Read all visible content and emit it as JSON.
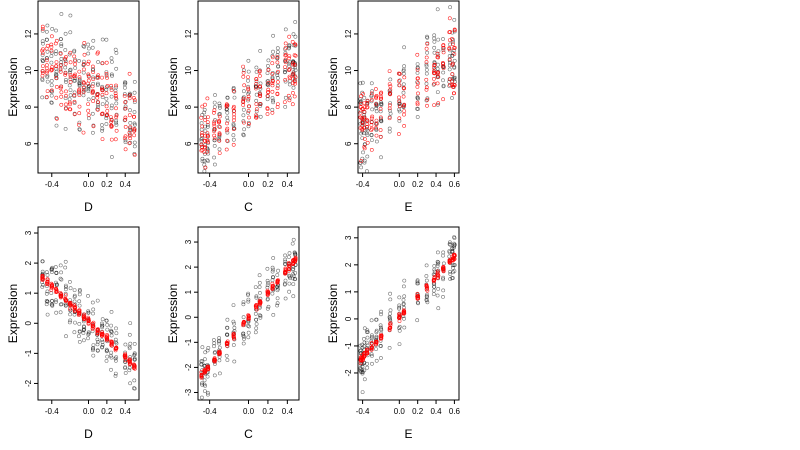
{
  "colors": {
    "black_points": "#000000",
    "red_points": "#ff0000",
    "background": "#ffffff",
    "frame": "#000000"
  },
  "chart_data": [
    {
      "type": "scatter",
      "panel": "top-left",
      "xlabel": "D",
      "ylabel": "Expression",
      "xlim": [
        -0.55,
        0.55
      ],
      "ylim": [
        4.4,
        13.8
      ],
      "xticks": [
        -0.4,
        0.0,
        0.2,
        0.4
      ],
      "xtick_labels": [
        "-0.4",
        "0.0",
        "0.2",
        "0.4"
      ],
      "yticks": [
        6,
        8,
        10,
        12
      ],
      "ytick_labels": [
        "6",
        "8",
        "10",
        "12"
      ],
      "series": [
        {
          "color": "black",
          "trend": {
            "x": [
              -0.5,
              0.5
            ],
            "y": [
              10.5,
              7.8
            ]
          },
          "spread": 2.4,
          "columns": [
            -0.5,
            -0.45,
            -0.4,
            -0.35,
            -0.3,
            -0.25,
            -0.2,
            -0.15,
            -0.1,
            -0.05,
            0.0,
            0.05,
            0.1,
            0.15,
            0.2,
            0.25,
            0.3,
            0.4,
            0.45,
            0.5
          ]
        },
        {
          "color": "red",
          "trend": {
            "x": [
              -0.5,
              0.5
            ],
            "y": [
              10.4,
              7.6
            ]
          },
          "spread": 2.2,
          "columns": [
            -0.5,
            -0.45,
            -0.4,
            -0.35,
            -0.3,
            -0.25,
            -0.2,
            -0.15,
            -0.1,
            -0.05,
            0.0,
            0.05,
            0.1,
            0.15,
            0.2,
            0.25,
            0.3,
            0.4,
            0.45,
            0.5
          ]
        }
      ]
    },
    {
      "type": "scatter",
      "panel": "top-middle",
      "xlabel": "C",
      "ylabel": "Expression",
      "xlim": [
        -0.52,
        0.52
      ],
      "ylim": [
        4.4,
        13.8
      ],
      "xticks": [
        -0.4,
        0.0,
        0.2,
        0.4
      ],
      "xtick_labels": [
        "-0.4",
        "0.0",
        "0.2",
        "0.4"
      ],
      "yticks": [
        6,
        8,
        10,
        12
      ],
      "ytick_labels": [
        "6",
        "8",
        "10",
        "12"
      ],
      "series": [
        {
          "color": "black",
          "trend": {
            "x": [
              -0.48,
              0.48
            ],
            "y": [
              6.0,
              10.5
            ]
          },
          "spread": 2.0,
          "columns": [
            -0.48,
            -0.45,
            -0.42,
            -0.35,
            -0.3,
            -0.22,
            -0.15,
            -0.05,
            0.0,
            0.08,
            0.12,
            0.2,
            0.25,
            0.3,
            0.38,
            0.42,
            0.46,
            0.48
          ]
        },
        {
          "color": "red",
          "trend": {
            "x": [
              -0.48,
              0.48
            ],
            "y": [
              6.2,
              10.2
            ]
          },
          "spread": 1.8,
          "columns": [
            -0.48,
            -0.45,
            -0.42,
            -0.35,
            -0.3,
            -0.22,
            -0.15,
            -0.05,
            0.0,
            0.08,
            0.12,
            0.2,
            0.25,
            0.3,
            0.38,
            0.42,
            0.46,
            0.48
          ]
        }
      ]
    },
    {
      "type": "scatter",
      "panel": "top-right",
      "xlabel": "E",
      "ylabel": "Expression",
      "xlim": [
        -0.45,
        0.65
      ],
      "ylim": [
        4.4,
        13.8
      ],
      "xticks": [
        -0.4,
        0.0,
        0.2,
        0.4,
        0.6
      ],
      "xtick_labels": [
        "-0.4",
        "0.0",
        "0.2",
        "0.4",
        "0.6"
      ],
      "yticks": [
        6,
        8,
        10,
        12
      ],
      "ytick_labels": [
        "6",
        "8",
        "10",
        "12"
      ],
      "series": [
        {
          "color": "black",
          "trend": {
            "x": [
              -0.42,
              0.6
            ],
            "y": [
              7.0,
              10.8
            ]
          },
          "spread": 2.3,
          "columns": [
            -0.42,
            -0.4,
            -0.38,
            -0.35,
            -0.3,
            -0.25,
            -0.2,
            -0.1,
            0.0,
            0.05,
            0.2,
            0.3,
            0.38,
            0.42,
            0.48,
            0.55,
            0.58,
            0.6
          ]
        },
        {
          "color": "red",
          "trend": {
            "x": [
              -0.42,
              0.6
            ],
            "y": [
              7.2,
              10.5
            ]
          },
          "spread": 2.1,
          "columns": [
            -0.42,
            -0.4,
            -0.38,
            -0.35,
            -0.3,
            -0.25,
            -0.2,
            -0.1,
            0.0,
            0.05,
            0.2,
            0.3,
            0.38,
            0.42,
            0.48,
            0.55,
            0.58,
            0.6
          ]
        }
      ]
    },
    {
      "type": "scatter",
      "panel": "bottom-left",
      "xlabel": "D",
      "ylabel": "Expression",
      "xlim": [
        -0.55,
        0.55
      ],
      "ylim": [
        -2.55,
        3.2
      ],
      "xticks": [
        -0.4,
        0.0,
        0.2,
        0.4
      ],
      "xtick_labels": [
        "-0.4",
        "0.0",
        "0.2",
        "0.4"
      ],
      "yticks": [
        -2,
        -1,
        0,
        1,
        2,
        3
      ],
      "ytick_labels": [
        "-2",
        "-1",
        "0",
        "1",
        "2",
        "3"
      ],
      "series": [
        {
          "color": "black",
          "trend": {
            "x": [
              -0.5,
              0.5
            ],
            "y": [
              1.5,
              -1.4
            ]
          },
          "spread": 1.0,
          "columns": [
            -0.5,
            -0.45,
            -0.4,
            -0.35,
            -0.3,
            -0.25,
            -0.2,
            -0.15,
            -0.1,
            -0.05,
            0.0,
            0.05,
            0.1,
            0.15,
            0.2,
            0.25,
            0.3,
            0.4,
            0.45,
            0.5
          ]
        },
        {
          "color": "red",
          "trend": {
            "x": [
              -0.5,
              0.5
            ],
            "y": [
              1.5,
              -1.4
            ]
          },
          "spread": 0.12,
          "columns": [
            -0.5,
            -0.45,
            -0.4,
            -0.35,
            -0.3,
            -0.25,
            -0.2,
            -0.15,
            -0.1,
            -0.05,
            0.0,
            0.05,
            0.1,
            0.15,
            0.2,
            0.25,
            0.3,
            0.4,
            0.45,
            0.5
          ]
        }
      ]
    },
    {
      "type": "scatter",
      "panel": "bottom-middle",
      "xlabel": "C",
      "ylabel": "Expression",
      "xlim": [
        -0.52,
        0.52
      ],
      "ylim": [
        -3.3,
        3.6
      ],
      "xticks": [
        -0.4,
        0.0,
        0.2,
        0.4
      ],
      "xtick_labels": [
        "-0.4",
        "0.0",
        "0.2",
        "0.4"
      ],
      "yticks": [
        -3,
        -2,
        -1,
        0,
        1,
        2,
        3
      ],
      "ytick_labels": [
        "-3",
        "-2",
        "-1",
        "0",
        "1",
        "2",
        "3"
      ],
      "series": [
        {
          "color": "black",
          "trend": {
            "x": [
              -0.48,
              0.48
            ],
            "y": [
              -2.3,
              2.3
            ]
          },
          "spread": 1.0,
          "columns": [
            -0.48,
            -0.45,
            -0.42,
            -0.35,
            -0.3,
            -0.22,
            -0.15,
            -0.05,
            0.0,
            0.08,
            0.12,
            0.2,
            0.25,
            0.3,
            0.38,
            0.42,
            0.46,
            0.48
          ]
        },
        {
          "color": "red",
          "trend": {
            "x": [
              -0.48,
              0.48
            ],
            "y": [
              -2.3,
              2.3
            ]
          },
          "spread": 0.12,
          "columns": [
            -0.48,
            -0.45,
            -0.42,
            -0.35,
            -0.3,
            -0.22,
            -0.15,
            -0.05,
            0.0,
            0.08,
            0.12,
            0.2,
            0.25,
            0.3,
            0.38,
            0.42,
            0.46,
            0.48
          ]
        }
      ]
    },
    {
      "type": "scatter",
      "panel": "bottom-right",
      "xlabel": "E",
      "ylabel": "Expression",
      "xlim": [
        -0.45,
        0.65
      ],
      "ylim": [
        -3.0,
        3.4
      ],
      "xticks": [
        -0.4,
        0.0,
        0.2,
        0.4,
        0.6
      ],
      "xtick_labels": [
        "-0.4",
        "0.0",
        "0.2",
        "0.4",
        "0.6"
      ],
      "yticks": [
        -2,
        -1,
        0,
        1,
        2,
        3
      ],
      "ytick_labels": [
        "-2",
        "-1",
        "0",
        "1",
        "2",
        "3"
      ],
      "series": [
        {
          "color": "black",
          "trend": {
            "x": [
              -0.42,
              0.6
            ],
            "y": [
              -1.5,
              2.3
            ]
          },
          "spread": 1.0,
          "columns": [
            -0.42,
            -0.4,
            -0.38,
            -0.35,
            -0.3,
            -0.25,
            -0.2,
            -0.1,
            0.0,
            0.05,
            0.2,
            0.3,
            0.38,
            0.42,
            0.48,
            0.55,
            0.58,
            0.6
          ]
        },
        {
          "color": "red",
          "trend": {
            "x": [
              -0.42,
              0.6
            ],
            "y": [
              -1.5,
              2.3
            ]
          },
          "spread": 0.12,
          "columns": [
            -0.42,
            -0.4,
            -0.38,
            -0.35,
            -0.3,
            -0.25,
            -0.2,
            -0.1,
            0.0,
            0.05,
            0.2,
            0.3,
            0.38,
            0.42,
            0.48,
            0.55,
            0.58,
            0.6
          ]
        }
      ]
    }
  ]
}
